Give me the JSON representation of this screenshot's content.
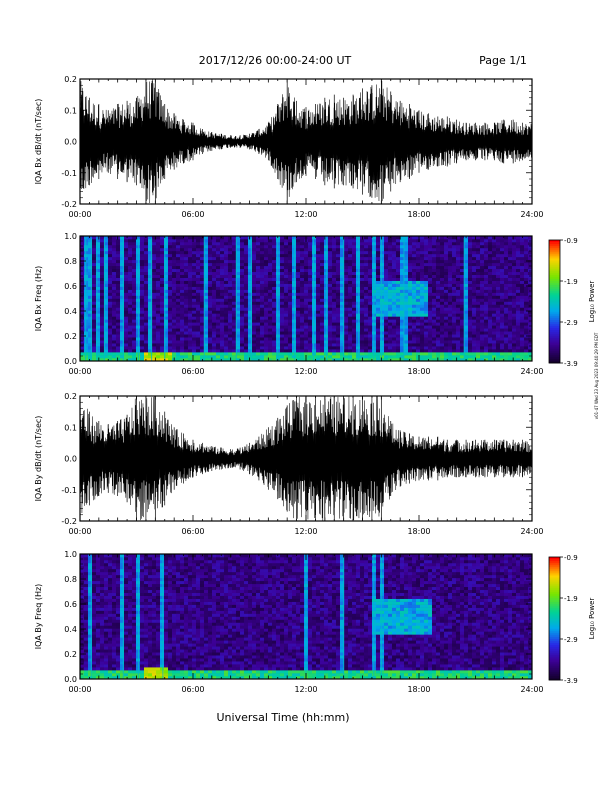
{
  "header": {
    "date_range": "2017/12/26  00:00-24:00 UT",
    "page_label": "Page 1/1"
  },
  "footer": {
    "xlabel": "Universal Time (hh:mm)",
    "stamp": "v01-47 Wed 23 Aug 2023 09:40:29 PM EDT"
  },
  "chart_data": [
    {
      "type": "line",
      "panel": "bx-waveform",
      "ylabel": "IQA Bx dB/dt (nT/sec)",
      "xlim": [
        0,
        24
      ],
      "ylim": [
        -0.2,
        0.2
      ],
      "xticks": [
        "00:00",
        "06:00",
        "12:00",
        "18:00",
        "24:00"
      ],
      "yticks": [
        "-0.2",
        "-0.1",
        "0.0",
        "0.1",
        "0.2"
      ],
      "series": [
        {
          "x": [
            0,
            0.5,
            1,
            1.5,
            2,
            2.5,
            3,
            3.5,
            4,
            4.5,
            5,
            5.5,
            6,
            6.5,
            7,
            7.5,
            8,
            8.5,
            9,
            9.5,
            10,
            10.5,
            11,
            11.5,
            12,
            12.5,
            13,
            13.5,
            14,
            14.5,
            15,
            15.5,
            16,
            16.5,
            17,
            17.5,
            18,
            18.5,
            19,
            19.5,
            20,
            20.5,
            21,
            21.5,
            22,
            22.5,
            23,
            23.5,
            24
          ],
          "y": [
            0.2,
            0.14,
            0.12,
            0.1,
            0.12,
            0.13,
            0.14,
            0.2,
            0.2,
            0.12,
            0.09,
            0.07,
            0.06,
            0.04,
            0.03,
            0.025,
            0.02,
            0.02,
            0.025,
            0.04,
            0.06,
            0.12,
            0.2,
            0.13,
            0.11,
            0.12,
            0.14,
            0.15,
            0.14,
            0.15,
            0.17,
            0.18,
            0.2,
            0.16,
            0.13,
            0.12,
            0.1,
            0.09,
            0.08,
            0.08,
            0.07,
            0.06,
            0.06,
            0.06,
            0.06,
            0.07,
            0.07,
            0.06,
            0.06
          ]
        }
      ]
    },
    {
      "type": "heatmap",
      "panel": "bx-spectrogram",
      "ylabel": "IQA Bx Freq (Hz)",
      "xlim": [
        0,
        24
      ],
      "ylim": [
        0.0,
        1.0
      ],
      "xticks": [
        "00:00",
        "06:00",
        "12:00",
        "18:00",
        "24:00"
      ],
      "yticks": [
        "0.0",
        "0.2",
        "0.4",
        "0.6",
        "0.8",
        "1.0"
      ],
      "colorbar": {
        "label": "Log₁₀ Power",
        "range": [
          -3.9,
          -0.9
        ],
        "ticks": [
          "-0.9",
          "-1.9",
          "-2.9",
          "-3.9"
        ]
      },
      "streaks_hours": [
        0.3,
        0.6,
        0.9,
        1.3,
        2.3,
        3.1,
        3.8,
        4.5,
        6.6,
        8.3,
        9.1,
        10.5,
        11.4,
        12.4,
        13.1,
        14.0,
        14.8,
        15.6,
        16.0,
        17.2,
        20.4
      ],
      "enhancements": [
        {
          "t0": 15.5,
          "t1": 18.5,
          "f0": 0.35,
          "f1": 0.65,
          "power": -2.6
        },
        {
          "t0": 0.0,
          "t1": 24.0,
          "f0": 0.0,
          "f1": 0.06,
          "power": -2.2
        },
        {
          "t0": 3.5,
          "t1": 4.8,
          "f0": 0.0,
          "f1": 0.08,
          "power": -1.6
        }
      ]
    },
    {
      "type": "line",
      "panel": "by-waveform",
      "ylabel": "IQA By dB/dt (nT/sec)",
      "xlim": [
        0,
        24
      ],
      "ylim": [
        -0.2,
        0.2
      ],
      "xticks": [
        "00:00",
        "06:00",
        "12:00",
        "18:00",
        "24:00"
      ],
      "yticks": [
        "-0.2",
        "-0.1",
        "0.0",
        "0.1",
        "0.2"
      ],
      "series": [
        {
          "x": [
            0,
            0.5,
            1,
            1.5,
            2,
            2.5,
            3,
            3.5,
            4,
            4.5,
            5,
            5.5,
            6,
            6.5,
            7,
            7.5,
            8,
            8.5,
            9,
            9.5,
            10,
            10.5,
            11,
            11.5,
            12,
            12.5,
            13,
            13.5,
            14,
            14.5,
            15,
            15.5,
            16,
            16.5,
            17,
            17.5,
            18,
            18.5,
            19,
            19.5,
            20,
            20.5,
            21,
            21.5,
            22,
            22.5,
            23,
            23.5,
            24
          ],
          "y": [
            0.2,
            0.15,
            0.12,
            0.11,
            0.12,
            0.14,
            0.2,
            0.2,
            0.2,
            0.15,
            0.1,
            0.08,
            0.06,
            0.05,
            0.04,
            0.035,
            0.03,
            0.035,
            0.05,
            0.07,
            0.1,
            0.13,
            0.17,
            0.2,
            0.2,
            0.2,
            0.2,
            0.2,
            0.2,
            0.2,
            0.2,
            0.2,
            0.2,
            0.12,
            0.09,
            0.08,
            0.07,
            0.07,
            0.07,
            0.06,
            0.06,
            0.06,
            0.06,
            0.06,
            0.06,
            0.06,
            0.06,
            0.06,
            0.05
          ]
        }
      ]
    },
    {
      "type": "heatmap",
      "panel": "by-spectrogram",
      "ylabel": "IQA By Freq (Hz)",
      "xlim": [
        0,
        24
      ],
      "ylim": [
        0.0,
        1.0
      ],
      "xticks": [
        "00:00",
        "06:00",
        "12:00",
        "18:00",
        "24:00"
      ],
      "yticks": [
        "0.0",
        "0.2",
        "0.4",
        "0.6",
        "0.8",
        "1.0"
      ],
      "colorbar": {
        "label": "Log₁₀ Power",
        "range": [
          -3.9,
          -0.9
        ],
        "ticks": [
          "-0.9",
          "-1.9",
          "-2.9",
          "-3.9"
        ]
      },
      "streaks_hours": [
        0.6,
        2.3,
        3.1,
        4.4,
        12.0,
        14.0,
        15.6,
        16.0
      ],
      "enhancements": [
        {
          "t0": 15.6,
          "t1": 18.6,
          "f0": 0.35,
          "f1": 0.65,
          "power": -2.6
        },
        {
          "t0": 0.0,
          "t1": 24.0,
          "f0": 0.0,
          "f1": 0.06,
          "power": -2.2
        },
        {
          "t0": 3.4,
          "t1": 4.7,
          "f0": 0.0,
          "f1": 0.1,
          "power": -1.6
        }
      ]
    }
  ],
  "colors": {
    "axis": "#000000",
    "waveform": "#000000",
    "background": "#ffffff"
  }
}
